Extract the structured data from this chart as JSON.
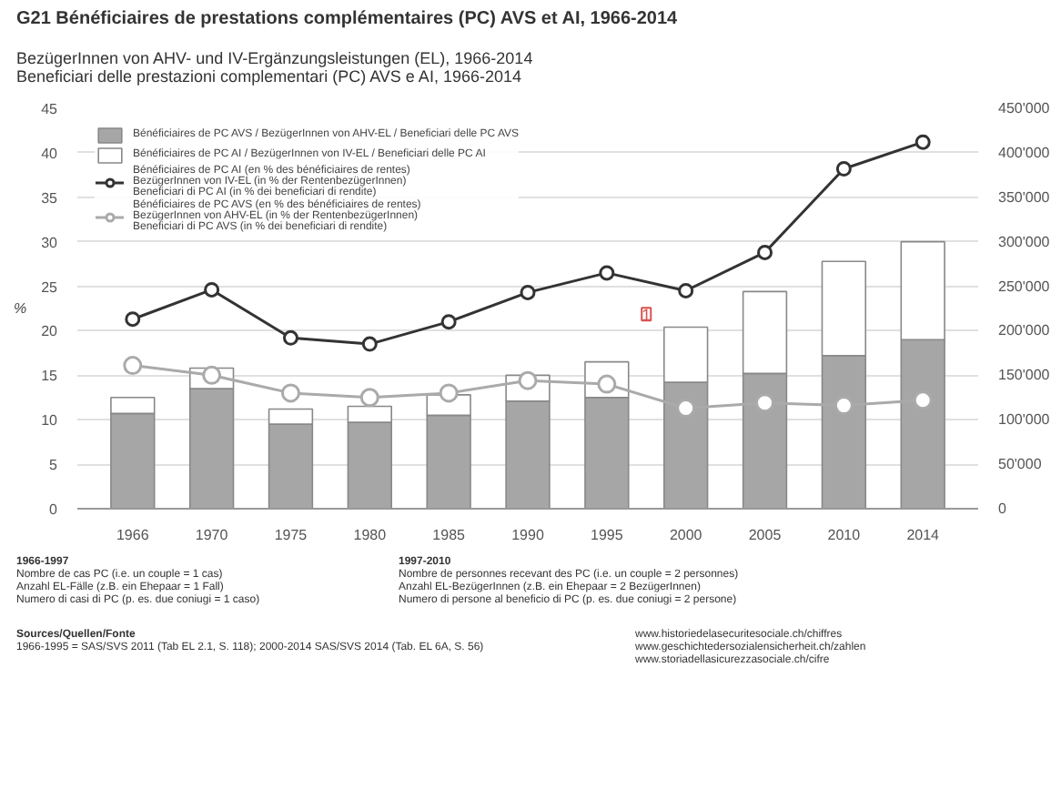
{
  "chart_data": {
    "type": "bar",
    "title": "G21 Bénéficiaires de prestations complémentaires (PC) AVS et AI, 1966-2014",
    "subtitle": "BezügerInnen von AHV- und IV-Ergänzungsleistungen (EL), 1966-2014\nBeneficiari delle prestazioni complementari (PC) AVS e AI, 1966-2014",
    "ylabel": "%",
    "categories": [
      "1966",
      "1970",
      "1975",
      "1980",
      "1985",
      "1990",
      "1995",
      "2000",
      "2005",
      "2010",
      "2014"
    ],
    "stacked": true,
    "series": [
      {
        "name": "Bénéficiaires de PC AVS / BezügerInnen von AHV-EL / Beneficiari delle PC AVS",
        "axis": "y2",
        "color": "#a6a6a6",
        "values": [
          107000,
          135000,
          95000,
          97000,
          105000,
          121000,
          125000,
          142000,
          152000,
          172000,
          190000
        ]
      },
      {
        "name": "Bénéficiaires de PC AI / BezügerInnen von IV-EL / Beneficiari delle PC AI",
        "axis": "y2",
        "color": "#ffffff",
        "values": [
          18000,
          23000,
          17000,
          18000,
          23000,
          29000,
          40000,
          62000,
          92000,
          106000,
          110000
        ]
      },
      {
        "name": "Bénéficiaires de PC AI (en % des bénéficiaires de rentes)\nBezügerInnen von IV-EL (in % der RentenbezügerInnen)\nBeneficiari di PC AI (in % dei beneficiari di rendite)",
        "type": "line",
        "color": "#333333",
        "values": [
          21.3,
          24.6,
          19.2,
          18.5,
          21,
          24.3,
          26.5,
          24.5,
          28.8,
          38.2,
          41.2
        ]
      },
      {
        "name": "Bénéficiaires de PC AVS (en % des bénéficiaires de rentes)\nBezügerInnen von AHV-EL (in % der RentenbezügerInnen)\nBeneficiari di PC AVS (in % dei beneficiari di rendite)",
        "type": "line",
        "color": "#aaaaaa",
        "values": [
          16.1,
          15,
          13,
          12.5,
          13,
          14.4,
          14,
          11.3,
          11.9,
          11.6,
          12.2
        ]
      }
    ],
    "marker": "circle",
    "ylim": [
      0,
      45
    ],
    "yticks": [
      0,
      5,
      10,
      15,
      20,
      25,
      30,
      35,
      40,
      45
    ],
    "y2lim": [
      0,
      450000
    ],
    "y2ticks": [
      0,
      {
        "value": 50000,
        "label": "50'000"
      },
      {
        "value": 100000,
        "label": "100'000"
      },
      {
        "value": 150000,
        "label": "150'000"
      },
      {
        "value": 200000,
        "label": "200'000"
      },
      {
        "value": 250000,
        "label": "250'000"
      },
      {
        "value": 300000,
        "label": "300'000"
      },
      {
        "value": 350000,
        "label": "350'000"
      },
      {
        "value": 400000,
        "label": "400'000"
      },
      {
        "value": 450000,
        "label": "450'000"
      }
    ],
    "grid": "y",
    "legend": "top left",
    "annotations": [
      "1",
      "1966-1997\nNombre de cas PC (i.e. un couple = 1 cas)\nAnzahl EL-Fälle (z.B. ein Ehepaar = 1 Fall)\nNumero di casi di PC (p. es. due coniugi = 1 caso)",
      "1997-2010\nNombre de personnes recevant des PC (i.e. un couple = 2 personnes)\nAnzahl EL-BezügerInnen (z.B. ein Ehepaar = 2 BezügerInnen)\nNumero di persone al beneficio di PC (p. es. due coniugi = 2 persone)",
      "Sources/Quellen/Fonte\n1966-1995 = SAS/SVS 2011 (Tab EL 2.1, S. 118); 2000-2014 SAS/SVS 2014 (Tab. EL 6A, S. 56)",
      "www.historiedelasecuritesociale.ch/chiffres\nwww.geschichtedersozialensicherheit.ch/zahlen\nwww.storiadellasicurezzasociale.ch/cifre"
    ]
  }
}
